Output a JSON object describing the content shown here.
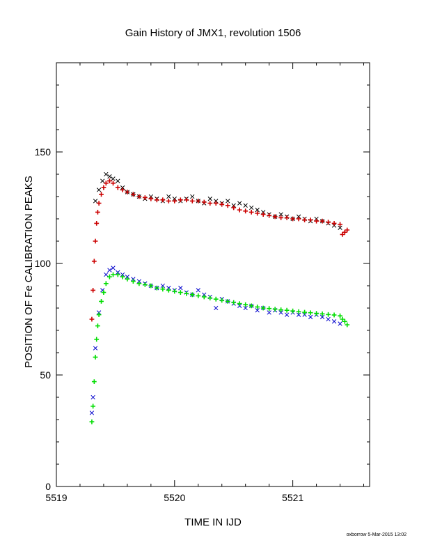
{
  "chart_data": {
    "type": "scatter",
    "title": "Gain History of JMX1, revolution 1506",
    "xlabel": "TIME IN IJD",
    "ylabel": "POSITION OF Fe CALIBRATION PEAKS",
    "xlim": [
      5519.0,
      5521.65
    ],
    "ylim": [
      0,
      190
    ],
    "x_ticks": [
      5519,
      5520,
      5521
    ],
    "x_tick_labels": [
      "5519",
      "5520",
      "5521"
    ],
    "y_ticks": [
      0,
      50,
      100,
      150
    ],
    "y_tick_labels": [
      "0",
      "50",
      "100",
      "150"
    ],
    "grid": false,
    "legend": "none",
    "footer": "oxborrow  5-Mar-2015 13:02",
    "series": [
      {
        "key": "high-peak-measured",
        "marker": "x",
        "color": "#000000",
        "x": [
          5519.33,
          5519.36,
          5519.39,
          5519.42,
          5519.45,
          5519.48,
          5519.52,
          5519.56,
          5519.6,
          5519.65,
          5519.7,
          5519.75,
          5519.8,
          5519.85,
          5519.9,
          5519.95,
          5520.0,
          5520.05,
          5520.1,
          5520.15,
          5520.2,
          5520.25,
          5520.3,
          5520.35,
          5520.4,
          5520.45,
          5520.5,
          5520.55,
          5520.6,
          5520.65,
          5520.7,
          5520.75,
          5520.8,
          5520.85,
          5520.9,
          5520.95,
          5521.0,
          5521.05,
          5521.1,
          5521.15,
          5521.2,
          5521.25,
          5521.3,
          5521.35,
          5521.4
        ],
        "y": [
          128,
          133,
          137,
          140,
          139,
          138,
          137,
          134,
          132,
          131,
          130,
          129,
          130,
          129,
          128,
          130,
          129,
          128,
          129,
          130,
          128,
          127,
          129,
          128,
          127,
          128,
          126,
          127,
          126,
          125,
          124,
          123,
          122,
          121,
          122,
          121,
          120,
          121,
          120,
          119,
          120,
          119,
          118,
          117,
          116
        ]
      },
      {
        "key": "high-peak-fit",
        "marker": "+",
        "color": "#cc0000",
        "x": [
          5519.3,
          5519.31,
          5519.32,
          5519.33,
          5519.34,
          5519.35,
          5519.36,
          5519.38,
          5519.4,
          5519.42,
          5519.45,
          5519.48,
          5519.52,
          5519.56,
          5519.6,
          5519.65,
          5519.7,
          5519.75,
          5519.8,
          5519.85,
          5519.9,
          5519.95,
          5520.0,
          5520.05,
          5520.1,
          5520.15,
          5520.2,
          5520.25,
          5520.3,
          5520.35,
          5520.4,
          5520.45,
          5520.5,
          5520.55,
          5520.6,
          5520.65,
          5520.7,
          5520.75,
          5520.8,
          5520.85,
          5520.9,
          5520.95,
          5521.0,
          5521.05,
          5521.1,
          5521.15,
          5521.2,
          5521.25,
          5521.3,
          5521.35,
          5521.4,
          5521.42,
          5521.44,
          5521.46
        ],
        "y": [
          75,
          88,
          101,
          110,
          118,
          123,
          127,
          131,
          134,
          136,
          137,
          136,
          134,
          133,
          132,
          131,
          130,
          129.5,
          129,
          128.5,
          128.5,
          128,
          128,
          128.5,
          128.5,
          128,
          128,
          127.5,
          127,
          127,
          126.5,
          126,
          125,
          124,
          123.5,
          123,
          122.5,
          122,
          121.5,
          121,
          120.5,
          120.5,
          120,
          120,
          119.5,
          119.5,
          119,
          119,
          118.5,
          118,
          117.5,
          113,
          114,
          115
        ]
      },
      {
        "key": "low-peak-measured",
        "marker": "x",
        "color": "#0000cc",
        "x": [
          5519.3,
          5519.31,
          5519.33,
          5519.36,
          5519.39,
          5519.42,
          5519.45,
          5519.48,
          5519.52,
          5519.56,
          5519.6,
          5519.65,
          5519.7,
          5519.75,
          5519.8,
          5519.85,
          5519.9,
          5519.95,
          5520.0,
          5520.05,
          5520.1,
          5520.15,
          5520.2,
          5520.25,
          5520.3,
          5520.35,
          5520.4,
          5520.45,
          5520.5,
          5520.55,
          5520.6,
          5520.65,
          5520.7,
          5520.75,
          5520.8,
          5520.85,
          5520.9,
          5520.95,
          5521.0,
          5521.05,
          5521.1,
          5521.15,
          5521.2,
          5521.25,
          5521.3,
          5521.35,
          5521.4
        ],
        "y": [
          33,
          40,
          62,
          78,
          88,
          95,
          97,
          98,
          96,
          95,
          94,
          93,
          92,
          91,
          90,
          89,
          90,
          89,
          88,
          89,
          87,
          86,
          88,
          86,
          85,
          80,
          84,
          83,
          82,
          81,
          80,
          81,
          79,
          80,
          78,
          79,
          78,
          77,
          78,
          77,
          77,
          76,
          77,
          76,
          75,
          74,
          73
        ]
      },
      {
        "key": "low-peak-fit",
        "marker": "+",
        "color": "#00dd00",
        "x": [
          5519.3,
          5519.31,
          5519.32,
          5519.33,
          5519.34,
          5519.35,
          5519.36,
          5519.38,
          5519.4,
          5519.42,
          5519.45,
          5519.48,
          5519.52,
          5519.56,
          5519.6,
          5519.65,
          5519.7,
          5519.75,
          5519.8,
          5519.85,
          5519.9,
          5519.95,
          5520.0,
          5520.05,
          5520.1,
          5520.15,
          5520.2,
          5520.25,
          5520.3,
          5520.35,
          5520.4,
          5520.45,
          5520.5,
          5520.55,
          5520.6,
          5520.65,
          5520.7,
          5520.75,
          5520.8,
          5520.85,
          5520.9,
          5520.95,
          5521.0,
          5521.05,
          5521.1,
          5521.15,
          5521.2,
          5521.25,
          5521.3,
          5521.35,
          5521.4,
          5521.42,
          5521.44,
          5521.46
        ],
        "y": [
          29,
          36,
          47,
          58,
          66,
          72,
          77,
          83,
          87,
          91,
          94,
          95,
          95,
          94,
          93,
          92,
          91,
          90.5,
          90,
          89,
          88.5,
          88,
          87.5,
          87,
          86.5,
          86,
          85.5,
          85,
          84.5,
          84,
          83.5,
          83,
          82.5,
          82,
          81.5,
          81,
          80.5,
          80,
          79.8,
          79.5,
          79.2,
          79,
          78.7,
          78.4,
          78.1,
          77.9,
          77.6,
          77.4,
          77.1,
          76.9,
          76.5,
          75,
          74,
          72.5
        ]
      }
    ]
  }
}
